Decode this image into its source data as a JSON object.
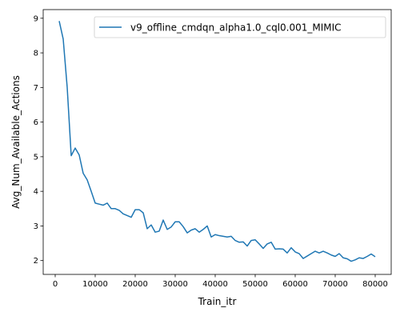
{
  "chart_data": {
    "type": "line",
    "title": "",
    "xlabel": "Train_itr",
    "ylabel": "Avg_Num_Available_Actions",
    "xlim": [
      -3000,
      84000
    ],
    "ylim": [
      1.6,
      9.25
    ],
    "xticks": [
      0,
      10000,
      20000,
      30000,
      40000,
      50000,
      60000,
      70000,
      80000
    ],
    "yticks": [
      2,
      3,
      4,
      5,
      6,
      7,
      8,
      9
    ],
    "grid": false,
    "legend_position": "top-right",
    "series": [
      {
        "name": "v9_offline_cmdqn_alpha1.0_cql0.001_MIMIC",
        "color": "#1f77b4",
        "x": [
          1000,
          2000,
          3000,
          4000,
          5000,
          6000,
          7000,
          8000,
          9000,
          10000,
          11000,
          12000,
          13000,
          14000,
          15000,
          16000,
          17000,
          18000,
          19000,
          20000,
          21000,
          22000,
          23000,
          24000,
          25000,
          26000,
          27000,
          28000,
          29000,
          30000,
          31000,
          32000,
          33000,
          34000,
          35000,
          36000,
          37000,
          38000,
          39000,
          40000,
          41000,
          42000,
          43000,
          44000,
          45000,
          46000,
          47000,
          48000,
          49000,
          50000,
          51000,
          52000,
          53000,
          54000,
          55000,
          56000,
          57000,
          58000,
          59000,
          60000,
          61000,
          62000,
          63000,
          64000,
          65000,
          66000,
          67000,
          68000,
          69000,
          70000,
          71000,
          72000,
          73000,
          74000,
          75000,
          76000,
          77000,
          78000,
          79000,
          80000
        ],
        "y": [
          8.92,
          8.4,
          7.0,
          5.03,
          5.25,
          5.05,
          4.52,
          4.33,
          4.0,
          3.66,
          3.63,
          3.6,
          3.66,
          3.5,
          3.5,
          3.45,
          3.35,
          3.3,
          3.25,
          3.47,
          3.47,
          3.38,
          2.92,
          3.03,
          2.82,
          2.85,
          3.17,
          2.9,
          2.97,
          3.12,
          3.12,
          2.98,
          2.8,
          2.88,
          2.92,
          2.82,
          2.9,
          3.0,
          2.68,
          2.75,
          2.72,
          2.7,
          2.68,
          2.7,
          2.58,
          2.53,
          2.54,
          2.42,
          2.58,
          2.6,
          2.48,
          2.35,
          2.48,
          2.53,
          2.33,
          2.34,
          2.33,
          2.22,
          2.37,
          2.25,
          2.2,
          2.06,
          2.13,
          2.2,
          2.27,
          2.22,
          2.27,
          2.22,
          2.16,
          2.12,
          2.2,
          2.08,
          2.05,
          1.98,
          2.02,
          2.08,
          2.06,
          2.12,
          2.19,
          2.11
        ]
      }
    ]
  }
}
